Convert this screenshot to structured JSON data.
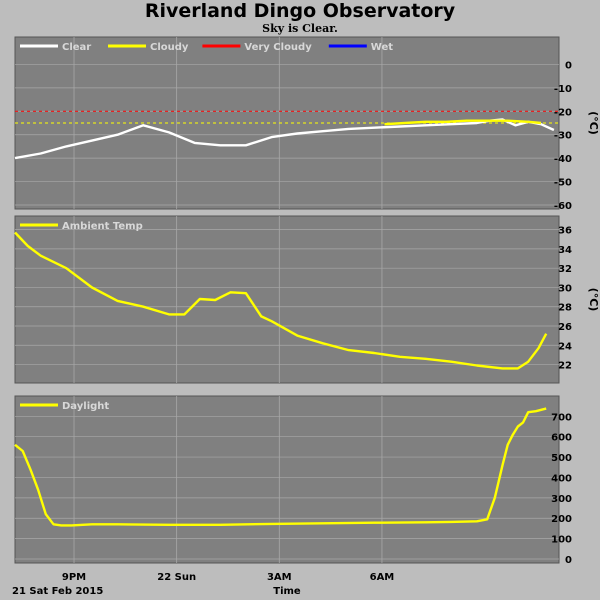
{
  "header": {
    "title": "Riverland Dingo Observatory",
    "subtitle": "Sky is Clear."
  },
  "footer": {
    "date_label": "21 Sat Feb 2015",
    "x_axis_label": "Time"
  },
  "x_axis": {
    "ticks": [
      "9PM",
      "22 Sun",
      "3AM",
      "6AM"
    ]
  },
  "colors": {
    "background": "#bdbdbd",
    "panel": "#808080",
    "grid": "#a8a8a8",
    "clear": "#ffffff",
    "cloudy": "#ffff00",
    "very_cloudy": "#ff0000",
    "wet": "#0000ff",
    "ambient": "#ffff00",
    "daylight": "#ffff00"
  },
  "chart_data": [
    {
      "type": "line",
      "id": "sky",
      "ylabel": "(°C)",
      "ylim": [
        -60,
        10
      ],
      "yticks": [
        0,
        -10,
        -20,
        -30,
        -40,
        -50,
        -60
      ],
      "legend": [
        "Clear",
        "Cloudy",
        "Very Cloudy",
        "Wet"
      ],
      "legend_colors": [
        "#ffffff",
        "#ffff00",
        "#ff0000",
        "#0000ff"
      ],
      "thresholds": [
        {
          "name": "Very Cloudy",
          "value": -20,
          "color": "#ff0000"
        },
        {
          "name": "Cloudy",
          "value": -25,
          "color": "#ffff00"
        }
      ],
      "series": [
        {
          "name": "Clear",
          "color": "#ffffff",
          "x": [
            0,
            0.5,
            1,
            1.5,
            2,
            2.5,
            3,
            3.5,
            4,
            4.5,
            5,
            5.5,
            6,
            6.5,
            7,
            7.5,
            8,
            8.5,
            9,
            9.25,
            9.5,
            9.75,
            10,
            10.25,
            10.5
          ],
          "y": [
            -40,
            -38,
            -35,
            -32.5,
            -30,
            -26,
            -29,
            -33.5,
            -34.5,
            -34.5,
            -31,
            -29.5,
            -28.5,
            -27.5,
            -27,
            -26.5,
            -26,
            -25.5,
            -25,
            -24,
            -23.5,
            -26,
            -24.5,
            -25.5,
            -28
          ]
        },
        {
          "name": "Cloudy",
          "color": "#ffff00",
          "x": [
            7.2,
            7.6,
            8,
            8.4,
            8.8,
            9.2,
            9.6,
            10,
            10.25
          ],
          "y": [
            -25.5,
            -25,
            -24.5,
            -24.5,
            -24,
            -24,
            -24,
            -24.5,
            -25
          ]
        }
      ]
    },
    {
      "type": "line",
      "id": "ambient",
      "ylabel": "(°C)",
      "ylim": [
        20.5,
        37
      ],
      "yticks": [
        36,
        34,
        32,
        30,
        28,
        26,
        24,
        22
      ],
      "legend": [
        "Ambient Temp"
      ],
      "legend_colors": [
        "#ffff00"
      ],
      "series": [
        {
          "name": "Ambient Temp",
          "color": "#ffff00",
          "x": [
            0,
            0.25,
            0.5,
            1,
            1.5,
            2,
            2.5,
            3,
            3.3,
            3.6,
            3.9,
            4.2,
            4.5,
            4.8,
            5,
            5.5,
            6,
            6.5,
            7,
            7.5,
            8,
            8.5,
            9,
            9.5,
            9.8,
            10,
            10.2,
            10.35
          ],
          "y": [
            35.7,
            34.3,
            33.3,
            32,
            30,
            28.6,
            28,
            27.2,
            27.2,
            28.8,
            28.7,
            29.5,
            29.4,
            27,
            26.5,
            25,
            24.2,
            23.5,
            23.2,
            22.8,
            22.6,
            22.3,
            21.9,
            21.6,
            21.6,
            22.3,
            23.7,
            25.2
          ]
        }
      ]
    },
    {
      "type": "line",
      "id": "daylight",
      "ylabel": "",
      "ylim": [
        0,
        780
      ],
      "yticks": [
        700,
        600,
        500,
        400,
        300,
        200,
        100,
        0
      ],
      "legend": [
        "Daylight"
      ],
      "legend_colors": [
        "#ffff00"
      ],
      "series": [
        {
          "name": "Daylight",
          "color": "#ffff00",
          "x": [
            0,
            0.15,
            0.3,
            0.45,
            0.6,
            0.75,
            0.9,
            1.1,
            1.5,
            2,
            3,
            4,
            5,
            6,
            7,
            8,
            8.5,
            9,
            9.2,
            9.35,
            9.5,
            9.6,
            9.7,
            9.8,
            9.9,
            10,
            10.15,
            10.3,
            10.35
          ],
          "y": [
            560,
            530,
            440,
            340,
            220,
            170,
            165,
            165,
            170,
            170,
            168,
            168,
            172,
            175,
            178,
            180,
            182,
            185,
            195,
            300,
            460,
            560,
            610,
            650,
            670,
            720,
            725,
            735,
            738
          ]
        }
      ]
    }
  ]
}
